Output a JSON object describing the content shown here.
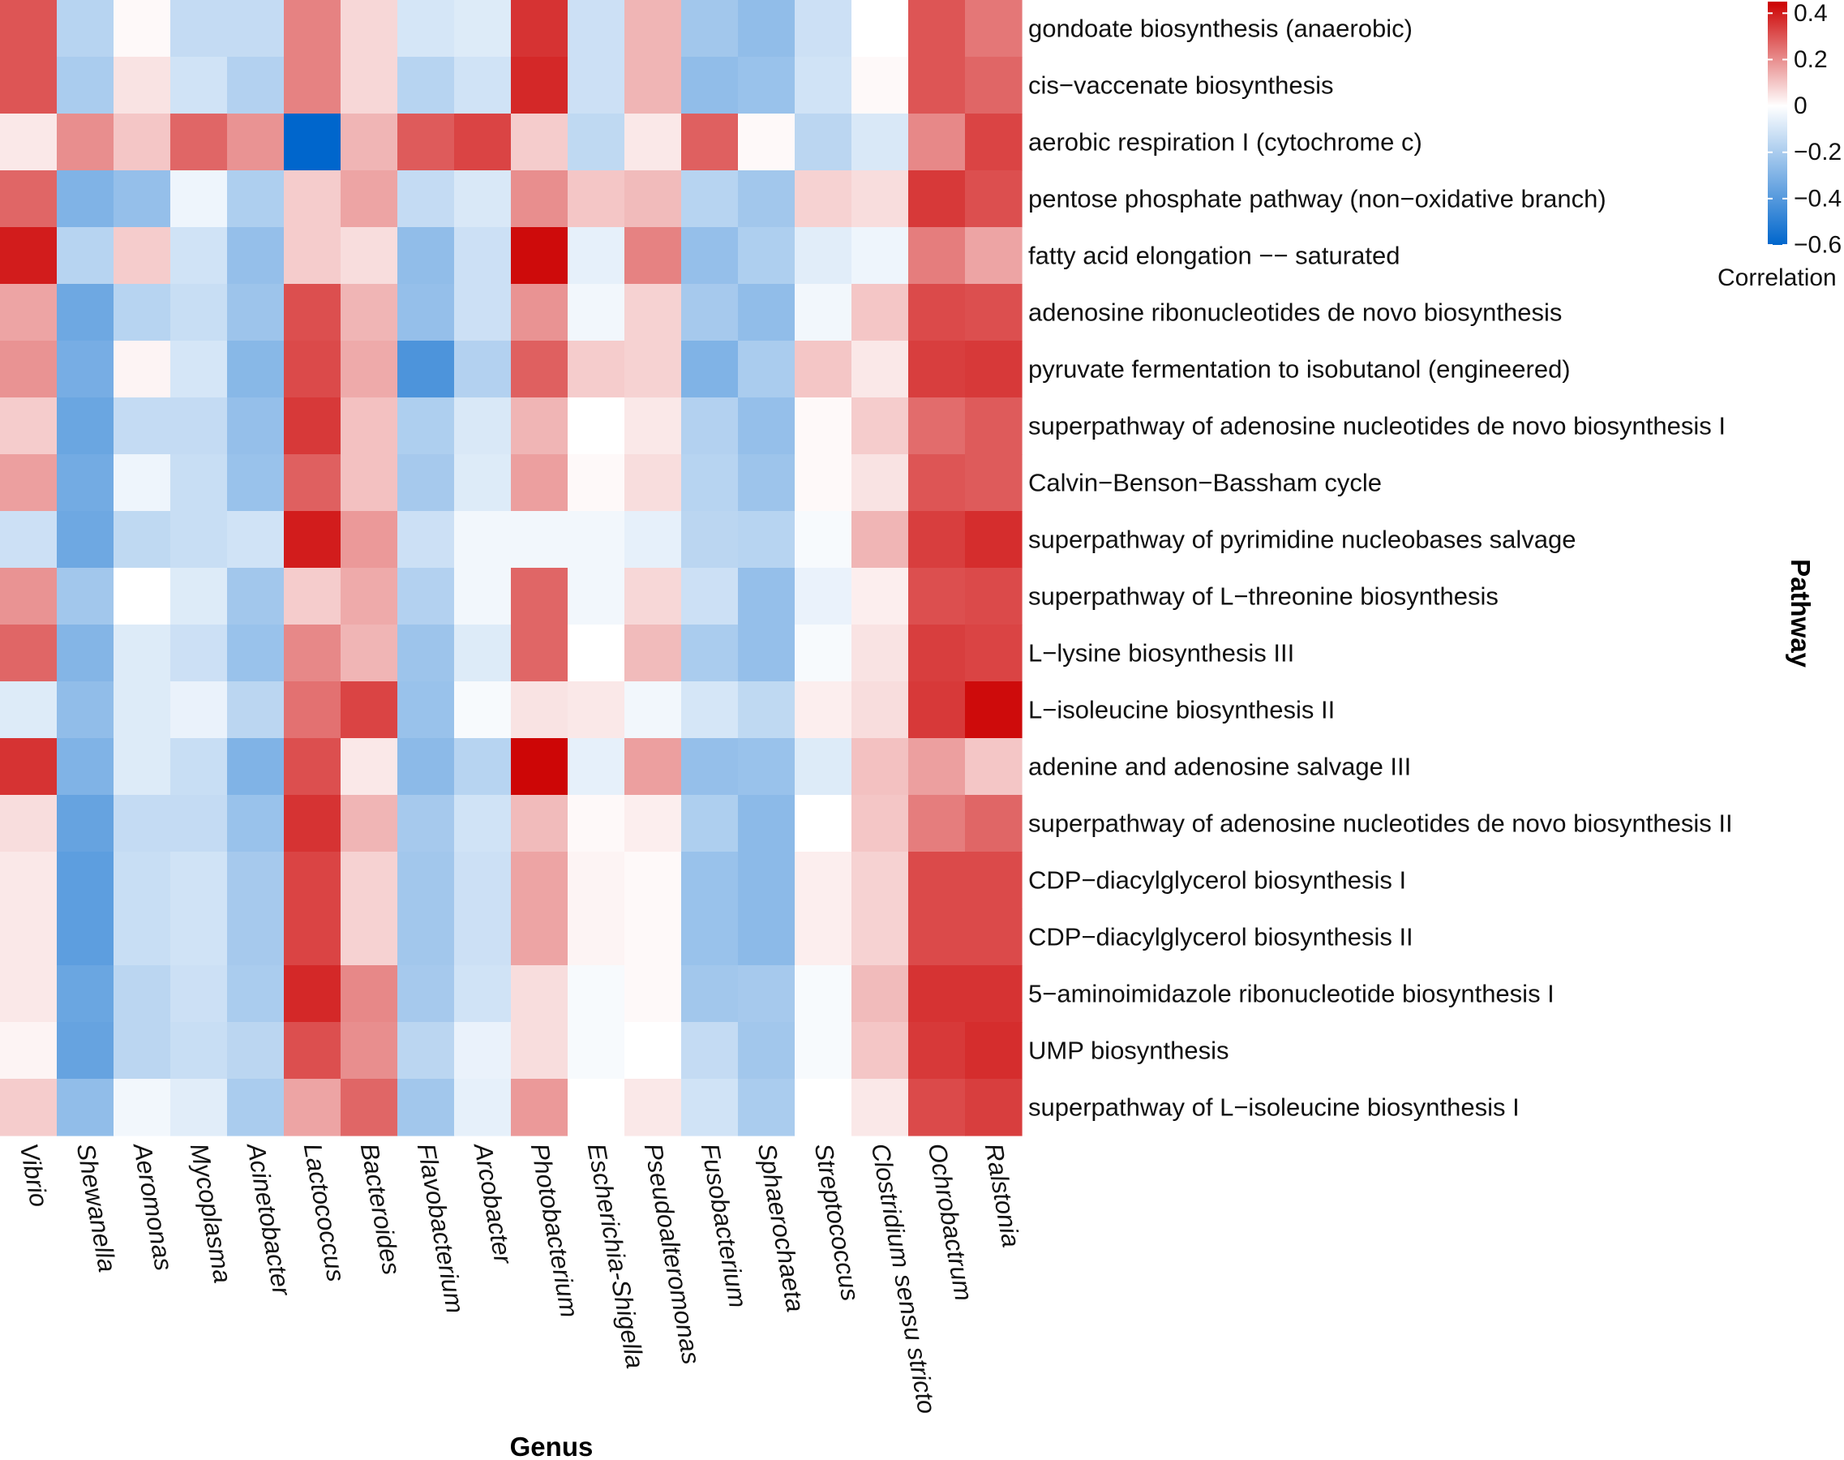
{
  "chart_data": {
    "type": "heatmap",
    "xlabel": "Genus",
    "ylabel": "Pathway",
    "x": [
      "Vibrio",
      "Shewanella",
      "Aeromonas",
      "Mycoplasma",
      "Acinetobacter",
      "Lactococcus",
      "Bacteroides",
      "Flavobacterium",
      "Arcobacter",
      "Photobacterium",
      "Escherichia-Shigella",
      "Pseudoalteromonas",
      "Fusobacterium",
      "Sphaerochaeta",
      "Streptococcus",
      "Clostridium sensu stricto",
      "Ochrobactrum",
      "Ralstonia"
    ],
    "y": [
      "gondoate biosynthesis (anaerobic)",
      "cis−vaccenate biosynthesis",
      "aerobic respiration I (cytochrome c)",
      "pentose phosphate pathway (non−oxidative branch)",
      "fatty acid elongation −− saturated",
      "adenosine ribonucleotides de novo biosynthesis",
      "pyruvate fermentation to isobutanol (engineered)",
      "superpathway of adenosine nucleotides de novo biosynthesis I",
      "Calvin−Benson−Bassham cycle",
      "superpathway of pyrimidine nucleobases salvage",
      "superpathway of L−threonine biosynthesis",
      "L−lysine biosynthesis III",
      "L−isoleucine biosynthesis II",
      "adenine and adenosine salvage III",
      "superpathway of adenosine nucleotides de novo biosynthesis II",
      "CDP−diacylglycerol biosynthesis I",
      "CDP−diacylglycerol biosynthesis II",
      "5−aminoimidazole ribonucleotide biosynthesis I",
      "UMP biosynthesis",
      "superpathway of L−isoleucine biosynthesis I"
    ],
    "values": [
      [
        0.3,
        -0.17,
        0.01,
        -0.14,
        -0.14,
        0.22,
        0.07,
        -0.1,
        -0.08,
        0.36,
        -0.12,
        0.13,
        -0.22,
        -0.26,
        -0.12,
        0.0,
        0.3,
        0.24
      ],
      [
        0.3,
        -0.2,
        0.05,
        -0.11,
        -0.18,
        0.22,
        0.07,
        -0.17,
        -0.11,
        0.38,
        -0.12,
        0.13,
        -0.26,
        -0.24,
        -0.11,
        0.01,
        0.3,
        0.27
      ],
      [
        0.04,
        0.2,
        0.1,
        0.27,
        0.19,
        -0.6,
        0.13,
        0.29,
        0.33,
        0.09,
        -0.15,
        0.04,
        0.28,
        0.01,
        -0.16,
        -0.09,
        0.21,
        0.33
      ],
      [
        0.27,
        -0.3,
        -0.25,
        -0.04,
        -0.19,
        0.09,
        0.16,
        -0.14,
        -0.09,
        0.2,
        0.1,
        0.12,
        -0.17,
        -0.22,
        0.08,
        0.06,
        0.35,
        0.31
      ],
      [
        0.4,
        -0.17,
        0.09,
        -0.11,
        -0.25,
        0.09,
        0.06,
        -0.26,
        -0.12,
        0.43,
        -0.06,
        0.22,
        -0.25,
        -0.19,
        -0.07,
        -0.04,
        0.23,
        0.16
      ],
      [
        0.16,
        -0.34,
        -0.17,
        -0.13,
        -0.23,
        0.31,
        0.13,
        -0.25,
        -0.12,
        0.19,
        -0.03,
        0.08,
        -0.21,
        -0.26,
        -0.03,
        0.1,
        0.32,
        0.31
      ],
      [
        0.19,
        -0.32,
        0.02,
        -0.1,
        -0.28,
        0.32,
        0.15,
        -0.42,
        -0.18,
        0.28,
        0.09,
        0.08,
        -0.3,
        -0.2,
        0.1,
        0.04,
        0.34,
        0.35
      ],
      [
        0.09,
        -0.35,
        -0.14,
        -0.14,
        -0.25,
        0.35,
        0.11,
        -0.19,
        -0.09,
        0.13,
        0.0,
        0.04,
        -0.18,
        -0.25,
        0.01,
        0.09,
        0.26,
        0.29
      ],
      [
        0.17,
        -0.33,
        -0.04,
        -0.13,
        -0.24,
        0.28,
        0.11,
        -0.21,
        -0.08,
        0.17,
        0.01,
        0.06,
        -0.17,
        -0.23,
        0.01,
        0.05,
        0.3,
        0.29
      ],
      [
        -0.12,
        -0.34,
        -0.15,
        -0.13,
        -0.11,
        0.4,
        0.18,
        -0.12,
        -0.03,
        -0.03,
        -0.03,
        -0.06,
        -0.16,
        -0.17,
        -0.02,
        0.13,
        0.34,
        0.37
      ],
      [
        0.19,
        -0.22,
        0.0,
        -0.08,
        -0.22,
        0.09,
        0.15,
        -0.18,
        -0.03,
        0.27,
        -0.03,
        0.07,
        -0.12,
        -0.25,
        -0.05,
        0.03,
        0.31,
        0.32
      ],
      [
        0.27,
        -0.29,
        -0.08,
        -0.12,
        -0.24,
        0.21,
        0.13,
        -0.23,
        -0.08,
        0.27,
        0.0,
        0.12,
        -0.2,
        -0.25,
        -0.02,
        0.05,
        0.34,
        0.33
      ],
      [
        -0.08,
        -0.26,
        -0.08,
        -0.05,
        -0.16,
        0.25,
        0.33,
        -0.24,
        -0.02,
        0.05,
        0.04,
        -0.03,
        -0.1,
        -0.15,
        0.03,
        0.06,
        0.35,
        0.43
      ],
      [
        0.36,
        -0.3,
        -0.08,
        -0.13,
        -0.3,
        0.31,
        0.04,
        -0.27,
        -0.17,
        0.44,
        -0.06,
        0.17,
        -0.25,
        -0.24,
        -0.08,
        0.11,
        0.17,
        0.1
      ],
      [
        0.06,
        -0.36,
        -0.14,
        -0.14,
        -0.24,
        0.36,
        0.13,
        -0.21,
        -0.11,
        0.12,
        0.01,
        0.03,
        -0.19,
        -0.27,
        0.0,
        0.1,
        0.23,
        0.27
      ],
      [
        0.04,
        -0.38,
        -0.13,
        -0.11,
        -0.21,
        0.33,
        0.08,
        -0.22,
        -0.12,
        0.16,
        0.02,
        0.01,
        -0.24,
        -0.27,
        0.03,
        0.08,
        0.32,
        0.32
      ],
      [
        0.04,
        -0.38,
        -0.13,
        -0.11,
        -0.21,
        0.33,
        0.08,
        -0.22,
        -0.12,
        0.16,
        0.02,
        0.01,
        -0.24,
        -0.27,
        0.03,
        0.08,
        0.32,
        0.32
      ],
      [
        0.04,
        -0.35,
        -0.16,
        -0.12,
        -0.2,
        0.38,
        0.21,
        -0.21,
        -0.11,
        0.06,
        -0.02,
        0.01,
        -0.22,
        -0.21,
        -0.02,
        0.12,
        0.36,
        0.36
      ],
      [
        0.02,
        -0.36,
        -0.16,
        -0.13,
        -0.16,
        0.31,
        0.2,
        -0.16,
        -0.05,
        0.06,
        -0.02,
        0.0,
        -0.14,
        -0.22,
        -0.02,
        0.1,
        0.35,
        0.37
      ],
      [
        0.09,
        -0.26,
        -0.03,
        -0.07,
        -0.2,
        0.16,
        0.27,
        -0.22,
        -0.06,
        0.18,
        0.0,
        0.04,
        -0.11,
        -0.2,
        0.0,
        0.04,
        0.32,
        0.34
      ]
    ],
    "colorbar": {
      "title": "Correlation",
      "ticks": [
        "0.4",
        "0.2",
        "0",
        "−0.2",
        "−0.4",
        "−0.6"
      ],
      "tick_values": [
        0.4,
        0.2,
        0,
        -0.2,
        -0.4,
        -0.6
      ],
      "range": [
        -0.6,
        0.45
      ],
      "colors": {
        "low": "#0066cc",
        "mid": "#ffffff",
        "high": "#cc0000"
      }
    }
  }
}
